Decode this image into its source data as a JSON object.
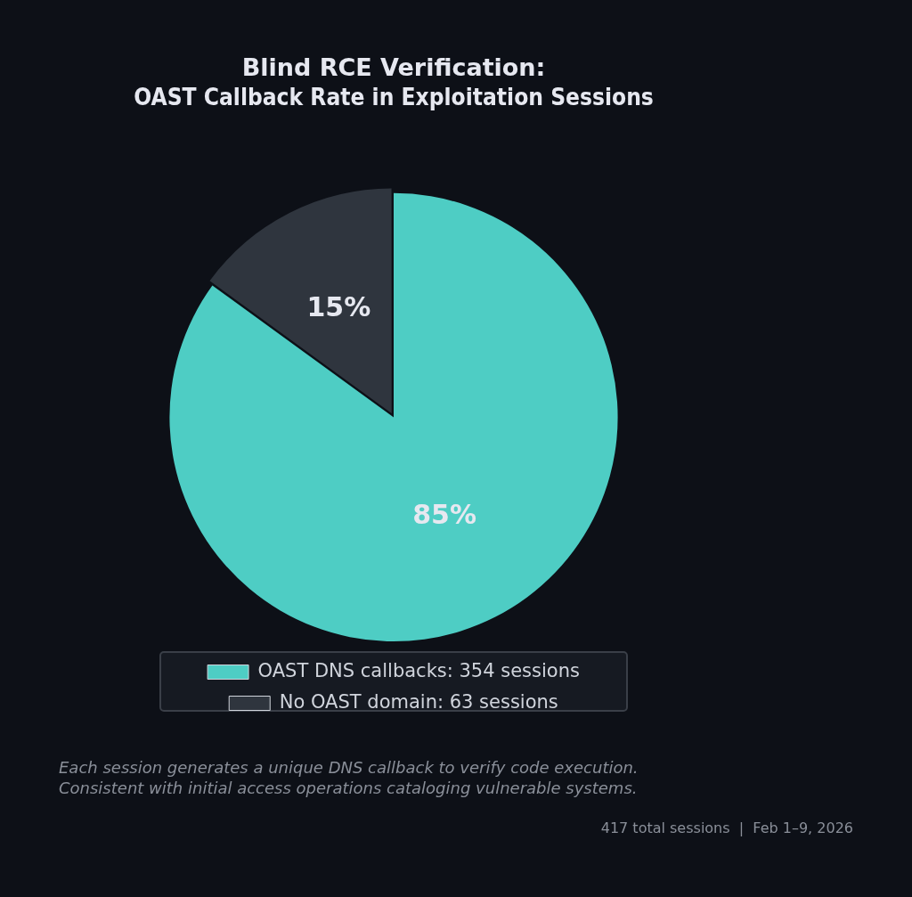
{
  "chart_data": {
    "type": "pie",
    "title": "Blind RCE Verification:\nOAST Callback Rate in Exploitation Sessions",
    "categories": [
      "OAST DNS callbacks: 354 sessions",
      "No OAST domain: 63 sessions"
    ],
    "values": [
      85,
      15
    ],
    "value_labels": [
      "85%",
      "15%"
    ],
    "colors": [
      "#4ecdc4",
      "#2f353e"
    ],
    "legend": "bottom",
    "annotations": [
      "Each session generates a unique DNS callback to verify code execution.\nConsistent with initial access operations cataloging vulnerable systems.",
      "417 total sessions  |  Feb 1–9, 2026"
    ]
  }
}
